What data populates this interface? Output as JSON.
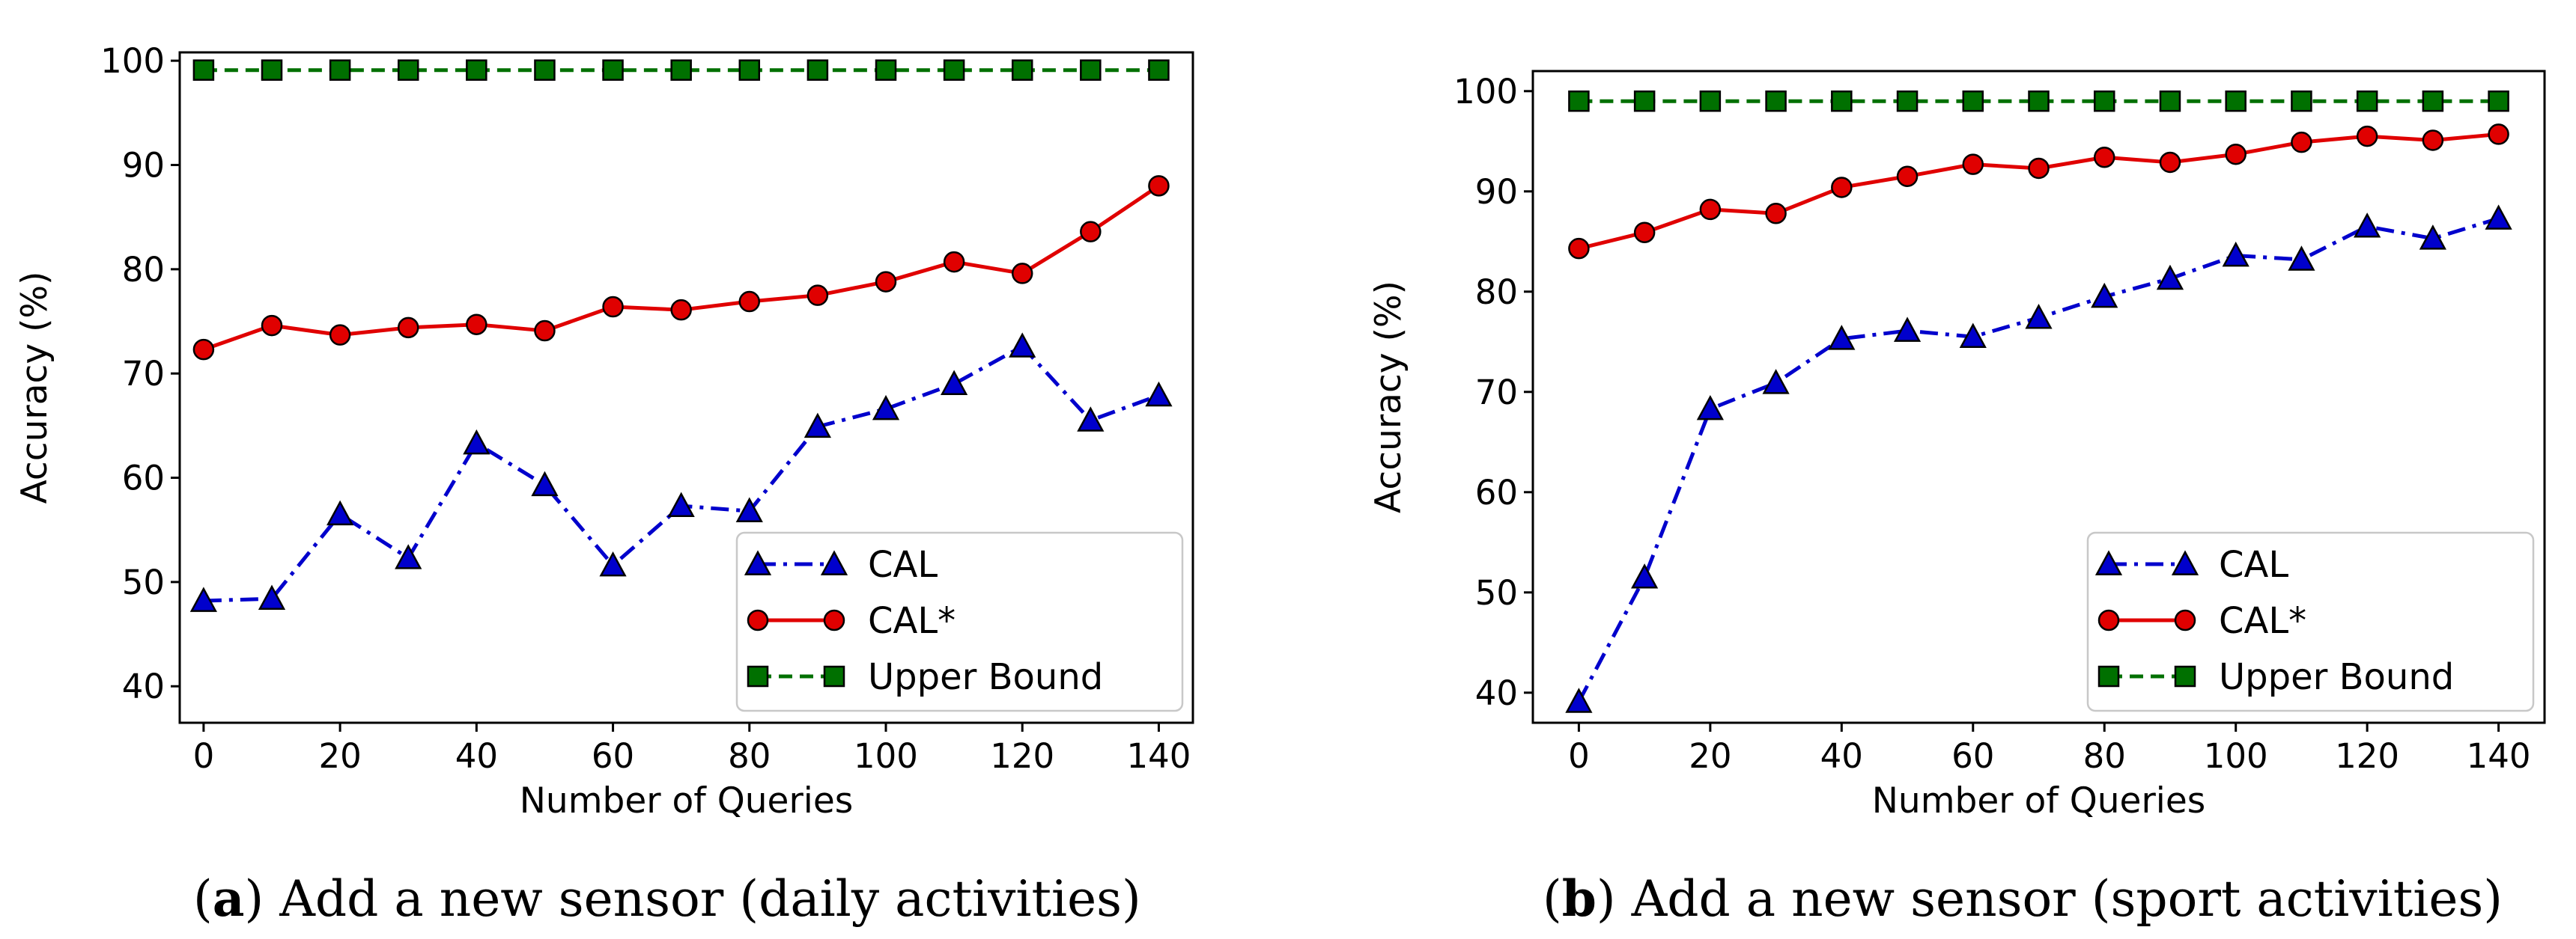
{
  "chart_data": [
    {
      "type": "line",
      "caption_letter": "a",
      "caption_text": ") Add a new sensor (daily activities)",
      "caption_open": "(",
      "xlabel": "Number of Queries",
      "ylabel": "Accuracy (%)",
      "xlim": [
        -3.5,
        145
      ],
      "ylim": [
        36.5,
        100.8
      ],
      "xticks": [
        0,
        20,
        40,
        60,
        80,
        100,
        120,
        140
      ],
      "yticks": [
        40,
        50,
        60,
        70,
        80,
        90,
        100
      ],
      "legend_position": "lower-right",
      "x": [
        0,
        10,
        20,
        30,
        40,
        50,
        60,
        70,
        80,
        90,
        100,
        110,
        120,
        130,
        140
      ],
      "series": [
        {
          "name": "CAL",
          "color": "#0000cc",
          "marker": "triangle",
          "style": "dashdot",
          "values": [
            48.2,
            48.4,
            56.5,
            52.3,
            63.3,
            59.3,
            51.6,
            57.3,
            56.8,
            64.9,
            66.6,
            69.0,
            72.6,
            65.5,
            67.9
          ]
        },
        {
          "name": "CAL*",
          "color": "#e00000",
          "marker": "circle",
          "style": "solid",
          "values": [
            72.3,
            74.6,
            73.7,
            74.4,
            74.7,
            74.1,
            76.4,
            76.1,
            76.9,
            77.5,
            78.8,
            80.7,
            79.6,
            83.6,
            88.0
          ]
        },
        {
          "name": "Upper Bound",
          "color": "#007000",
          "marker": "square",
          "style": "dashed",
          "values": [
            99.1,
            99.1,
            99.1,
            99.1,
            99.1,
            99.1,
            99.1,
            99.1,
            99.1,
            99.1,
            99.1,
            99.1,
            99.1,
            99.1,
            99.1
          ]
        }
      ]
    },
    {
      "type": "line",
      "caption_letter": "b",
      "caption_text": ") Add a new sensor (sport activities)",
      "caption_open": "(",
      "xlabel": "Number of Queries",
      "ylabel": "Accuracy (%)",
      "xlim": [
        -7,
        147
      ],
      "ylim": [
        37,
        102
      ],
      "xticks": [
        0,
        20,
        40,
        60,
        80,
        100,
        120,
        140
      ],
      "yticks": [
        40,
        50,
        60,
        70,
        80,
        90,
        100
      ],
      "legend_position": "lower-right",
      "x": [
        0,
        10,
        20,
        30,
        40,
        50,
        60,
        70,
        80,
        90,
        100,
        110,
        120,
        130,
        140
      ],
      "series": [
        {
          "name": "CAL",
          "color": "#0000cc",
          "marker": "triangle",
          "style": "dashdot",
          "values": [
            39.1,
            51.5,
            68.3,
            70.9,
            75.3,
            76.1,
            75.5,
            77.4,
            79.5,
            81.3,
            83.6,
            83.2,
            86.5,
            85.3,
            87.3
          ]
        },
        {
          "name": "CAL*",
          "color": "#e00000",
          "marker": "circle",
          "style": "solid",
          "values": [
            84.3,
            85.9,
            88.2,
            87.8,
            90.4,
            91.5,
            92.7,
            92.3,
            93.4,
            92.9,
            93.7,
            94.9,
            95.5,
            95.1,
            95.7
          ]
        },
        {
          "name": "Upper Bound",
          "color": "#007000",
          "marker": "square",
          "style": "dashed",
          "values": [
            99.0,
            99.0,
            99.0,
            99.0,
            99.0,
            99.0,
            99.0,
            99.0,
            99.0,
            99.0,
            99.0,
            99.0,
            99.0,
            99.0,
            99.0
          ]
        }
      ]
    }
  ]
}
